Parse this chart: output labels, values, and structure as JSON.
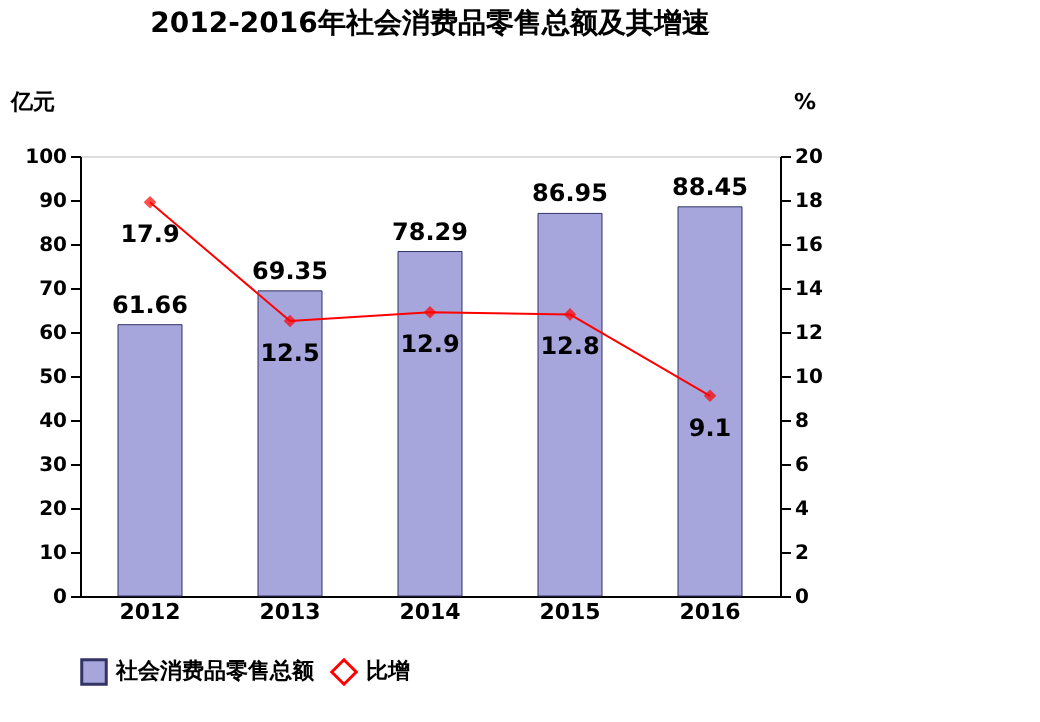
{
  "chart_data": {
    "type": "bar",
    "title": "2012-2016年社会消费品零售总额及其增速",
    "ylabel": "亿元",
    "y2label": "%",
    "categories": [
      "2012",
      "2013",
      "2014",
      "2015",
      "2016"
    ],
    "series": [
      {
        "name": "社会消费品零售总额",
        "color": "#a6a6dc",
        "values": [
          61.66,
          69.35,
          78.29,
          86.95,
          88.45
        ]
      },
      {
        "name": "比增",
        "type": "line",
        "axis": "y2",
        "color": "#ff0000",
        "marker": "diamond",
        "values": [
          17.9,
          12.5,
          12.9,
          12.8,
          9.1
        ]
      }
    ],
    "ylim": [
      0,
      100
    ],
    "yticks": [
      0,
      10,
      20,
      30,
      40,
      50,
      60,
      70,
      80,
      90,
      100
    ],
    "y2lim": [
      0,
      20
    ],
    "y2ticks": [
      0,
      2,
      4,
      6,
      8,
      10,
      12,
      14,
      16,
      18,
      20
    ],
    "data_labels": true,
    "grid": false,
    "legend": "bottom"
  }
}
